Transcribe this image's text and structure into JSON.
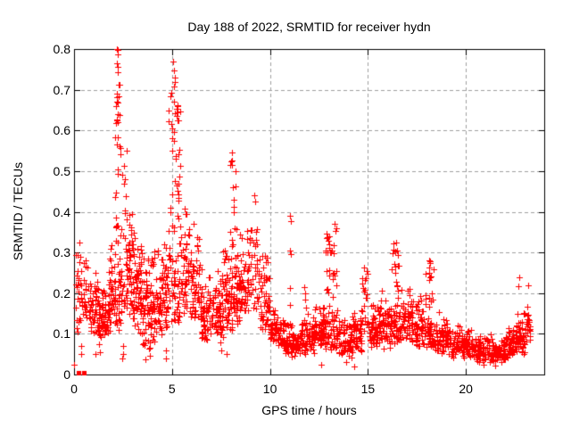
{
  "chart_data": {
    "type": "scatter",
    "title": "Day 188 of 2022, SRMTID for receiver hydn",
    "xlabel": "GPS time / hours",
    "ylabel": "SRMTID / TECUs",
    "xlim": [
      0,
      24
    ],
    "ylim": [
      0,
      0.8
    ],
    "xticks": [
      "0",
      "5",
      "10",
      "15",
      "20"
    ],
    "yticks": [
      "0",
      "0.1",
      "0.2",
      "0.3",
      "0.4",
      "0.5",
      "0.6",
      "0.7",
      "0.8"
    ],
    "grid": "dashed lines at major ticks, mirrored inward tick marks on all four sides",
    "legend": "none",
    "marker": "plus",
    "marker_size": 7,
    "marker_color": "#ff0000",
    "grid_color": "#a0a0a0",
    "axis_color": "#000000",
    "background": "#ffffff",
    "seed": 11,
    "cluster_format": "[x_start_hours, x_end_hours, y_min_TECUs, y_max_TECUs, n_points, mode] mode b=band concentrated near lower values, c=column spread uniformly (spike)",
    "envelope_clusters": [
      [
        0.05,
        0.35,
        0.1,
        0.33,
        26,
        "c"
      ],
      [
        0.35,
        0.75,
        0.12,
        0.3,
        32,
        "b"
      ],
      [
        0.75,
        1.25,
        0.1,
        0.28,
        50,
        "b"
      ],
      [
        1.25,
        1.75,
        0.09,
        0.23,
        60,
        "b"
      ],
      [
        1.75,
        2.1,
        0.1,
        0.36,
        42,
        "b"
      ],
      [
        2.1,
        2.35,
        0.28,
        0.8,
        30,
        "c"
      ],
      [
        2.05,
        2.4,
        0.1,
        0.3,
        28,
        "b"
      ],
      [
        2.35,
        2.7,
        0.15,
        0.56,
        30,
        "c"
      ],
      [
        2.65,
        3.05,
        0.12,
        0.44,
        50,
        "b"
      ],
      [
        3.05,
        3.45,
        0.1,
        0.4,
        52,
        "b"
      ],
      [
        3.45,
        3.95,
        0.06,
        0.33,
        58,
        "b"
      ],
      [
        3.95,
        4.45,
        0.08,
        0.32,
        55,
        "b"
      ],
      [
        4.45,
        4.8,
        0.1,
        0.36,
        48,
        "b"
      ],
      [
        4.8,
        5.15,
        0.2,
        0.72,
        28,
        "c"
      ],
      [
        5.1,
        5.45,
        0.22,
        0.67,
        34,
        "c"
      ],
      [
        4.8,
        5.45,
        0.12,
        0.28,
        30,
        "b"
      ],
      [
        5.45,
        5.9,
        0.15,
        0.43,
        45,
        "b"
      ],
      [
        5.9,
        6.4,
        0.12,
        0.38,
        52,
        "b"
      ],
      [
        6.4,
        7.0,
        0.07,
        0.28,
        62,
        "b"
      ],
      [
        7.0,
        7.6,
        0.09,
        0.26,
        60,
        "b"
      ],
      [
        7.6,
        7.98,
        0.1,
        0.34,
        42,
        "b"
      ],
      [
        7.98,
        8.3,
        0.14,
        0.54,
        32,
        "c"
      ],
      [
        7.98,
        8.35,
        0.1,
        0.26,
        22,
        "b"
      ],
      [
        8.3,
        8.8,
        0.12,
        0.36,
        48,
        "b"
      ],
      [
        8.8,
        9.45,
        0.12,
        0.44,
        52,
        "b"
      ],
      [
        9.45,
        10.0,
        0.1,
        0.31,
        52,
        "b"
      ],
      [
        10.0,
        10.5,
        0.07,
        0.17,
        46,
        "b"
      ],
      [
        10.5,
        11.0,
        0.05,
        0.14,
        50,
        "b"
      ],
      [
        11.0,
        11.6,
        0.04,
        0.13,
        58,
        "b"
      ],
      [
        11.6,
        12.3,
        0.05,
        0.15,
        68,
        "b"
      ],
      [
        12.3,
        12.85,
        0.06,
        0.18,
        62,
        "b"
      ],
      [
        12.85,
        13.5,
        0.09,
        0.37,
        46,
        "c"
      ],
      [
        12.85,
        13.5,
        0.06,
        0.13,
        32,
        "b"
      ],
      [
        13.5,
        14.2,
        0.04,
        0.15,
        68,
        "b"
      ],
      [
        14.2,
        14.7,
        0.05,
        0.17,
        56,
        "b"
      ],
      [
        14.7,
        15.0,
        0.09,
        0.26,
        20,
        "c"
      ],
      [
        15.0,
        15.6,
        0.06,
        0.19,
        58,
        "b"
      ],
      [
        15.6,
        16.2,
        0.06,
        0.21,
        58,
        "b"
      ],
      [
        16.2,
        16.6,
        0.11,
        0.33,
        28,
        "c"
      ],
      [
        16.2,
        16.7,
        0.07,
        0.16,
        26,
        "b"
      ],
      [
        16.6,
        17.3,
        0.08,
        0.23,
        58,
        "b"
      ],
      [
        17.3,
        17.9,
        0.06,
        0.2,
        52,
        "b"
      ],
      [
        17.9,
        18.35,
        0.09,
        0.28,
        24,
        "c"
      ],
      [
        17.9,
        18.4,
        0.06,
        0.15,
        32,
        "b"
      ],
      [
        18.4,
        19.0,
        0.05,
        0.16,
        52,
        "b"
      ],
      [
        19.0,
        19.7,
        0.04,
        0.13,
        58,
        "b"
      ],
      [
        19.7,
        20.5,
        0.04,
        0.12,
        64,
        "b"
      ],
      [
        20.5,
        21.3,
        0.03,
        0.11,
        64,
        "b"
      ],
      [
        21.3,
        22.0,
        0.03,
        0.1,
        62,
        "b"
      ],
      [
        22.0,
        22.6,
        0.04,
        0.12,
        56,
        "b"
      ],
      [
        22.6,
        23.0,
        0.05,
        0.16,
        40,
        "b"
      ],
      [
        22.95,
        23.3,
        0.07,
        0.19,
        32,
        "b"
      ]
    ],
    "notable_points": [
      [
        0.0,
        0.025
      ],
      [
        1.1,
        0.05
      ],
      [
        2.44,
        0.04
      ],
      [
        3.64,
        0.038
      ],
      [
        0.35,
        0.07
      ],
      [
        0.36,
        0.05
      ],
      [
        1.28,
        0.075
      ],
      [
        1.3,
        0.055
      ],
      [
        2.5,
        0.07
      ],
      [
        2.52,
        0.05
      ],
      [
        3.85,
        0.065
      ],
      [
        3.87,
        0.045
      ],
      [
        4.68,
        0.06
      ],
      [
        4.7,
        0.04
      ],
      [
        7.45,
        0.08
      ],
      [
        7.5,
        0.06
      ],
      [
        7.8,
        0.05
      ],
      [
        2.2,
        0.8
      ],
      [
        2.22,
        0.786
      ],
      [
        2.2,
        0.765
      ],
      [
        2.24,
        0.742
      ],
      [
        2.3,
        0.712
      ],
      [
        2.18,
        0.69
      ],
      [
        5.05,
        0.77
      ],
      [
        5.1,
        0.748
      ],
      [
        5.13,
        0.73
      ],
      [
        5.28,
        0.66
      ],
      [
        5.3,
        0.645
      ],
      [
        5.25,
        0.635
      ],
      [
        8.05,
        0.545
      ],
      [
        8.08,
        0.525
      ],
      [
        9.18,
        0.44
      ],
      [
        9.23,
        0.425
      ],
      [
        11.03,
        0.39
      ],
      [
        11.06,
        0.378
      ],
      [
        11.02,
        0.305
      ],
      [
        11.07,
        0.295
      ],
      [
        11.04,
        0.213
      ],
      [
        11.02,
        0.17
      ],
      [
        11.75,
        0.215
      ],
      [
        11.78,
        0.2
      ],
      [
        11.8,
        0.185
      ],
      [
        11.82,
        0.165
      ],
      [
        13.3,
        0.37
      ],
      [
        13.33,
        0.352
      ],
      [
        14.82,
        0.262
      ],
      [
        16.45,
        0.325
      ],
      [
        18.15,
        0.278
      ],
      [
        22.73,
        0.238
      ],
      [
        22.7,
        0.216
      ],
      [
        23.2,
        0.22
      ],
      [
        12.6,
        0.025
      ],
      [
        13.9,
        0.03
      ],
      [
        14.3,
        0.02
      ],
      [
        20.9,
        0.025
      ],
      [
        21.5,
        0.022
      ]
    ],
    "zero_markers": [
      [
        0.23,
        0.005
      ],
      [
        0.52,
        0.005
      ]
    ]
  }
}
